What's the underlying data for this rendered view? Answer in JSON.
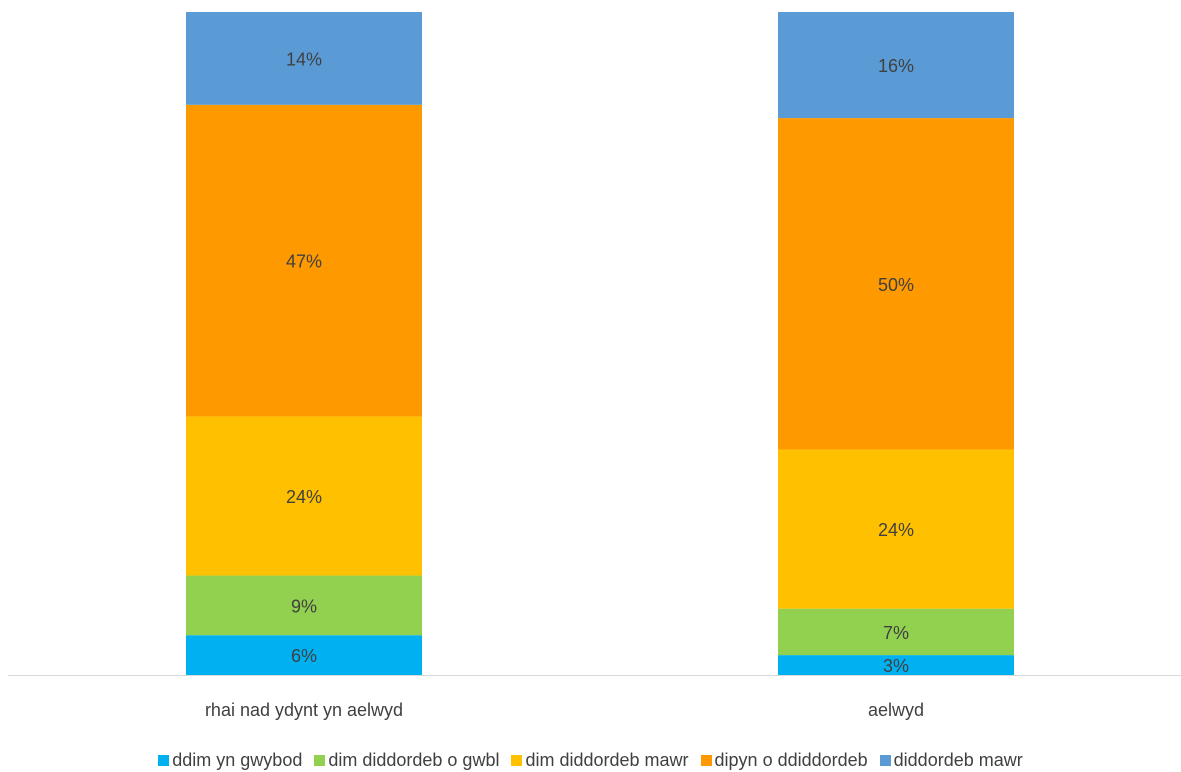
{
  "chart_data": {
    "type": "bar",
    "stacked": true,
    "categories": [
      "rhai nad ydynt yn aelwyd",
      "aelwyd"
    ],
    "series": [
      {
        "name": "ddim yn gwybod",
        "color": "#00B0F0",
        "values": [
          6,
          3
        ],
        "labels": [
          "6%",
          "3%"
        ]
      },
      {
        "name": "dim diddordeb o gwbl",
        "color": "#92D050",
        "values": [
          9,
          7
        ],
        "labels": [
          "9%",
          "7%"
        ]
      },
      {
        "name": "dim diddordeb mawr",
        "color": "#FFC000",
        "values": [
          24,
          24
        ],
        "labels": [
          "24%",
          "24%"
        ]
      },
      {
        "name": "dipyn o ddiddordeb",
        "color": "#FF9900",
        "values": [
          47,
          50
        ],
        "labels": [
          "47%",
          "50%"
        ]
      },
      {
        "name": "diddordeb mawr",
        "color": "#5B9BD5",
        "values": [
          14,
          16
        ],
        "labels": [
          "14%",
          "16%"
        ]
      }
    ],
    "ylim": [
      0,
      100
    ],
    "grid": false,
    "legend_position": "bottom"
  },
  "colors": {
    "axis": "#D9D9D9",
    "label_text": "#404040"
  }
}
